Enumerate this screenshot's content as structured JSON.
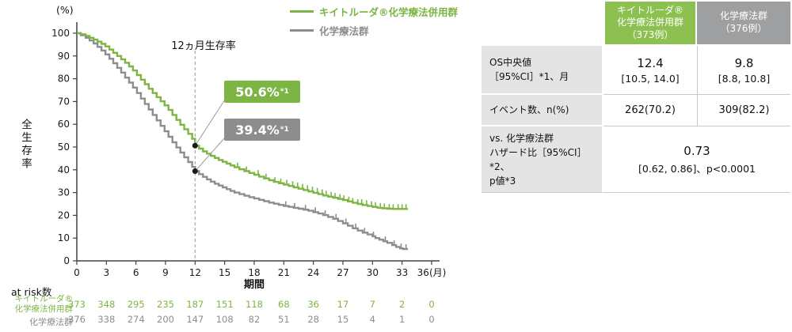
{
  "colors": {
    "green": "#7cb543",
    "gray": "#8d8d8d",
    "header-green": "#8cc152",
    "header-gray": "#9e9fa0",
    "label-bg": "#e4e4e5",
    "grid-line": "#c9c9ca",
    "axis": "#404040"
  },
  "chart": {
    "y_unit": "(%)",
    "ylabel": "全生存率",
    "xlabel": "期間",
    "annotation_12m": "12ヵ月生存率",
    "legend": [
      {
        "label": "キイトルーダ®化学療法併用群"
      },
      {
        "label": "化学療法群"
      }
    ],
    "callouts": [
      {
        "value": "50.6%",
        "sup": "*1"
      },
      {
        "value": "39.4%",
        "sup": "*1"
      }
    ]
  },
  "chart_data": {
    "type": "line",
    "subtype": "kaplan-meier-step",
    "title": "",
    "xlabel": "期間",
    "ylabel": "全生存率 (%)",
    "xlim": [
      0,
      36
    ],
    "ylim": [
      0,
      100
    ],
    "x_ticks": [
      0,
      3,
      6,
      9,
      12,
      15,
      18,
      21,
      24,
      27,
      30,
      33,
      36
    ],
    "x_tick_labels": [
      "0",
      "3",
      "6",
      "9",
      "12",
      "15",
      "18",
      "21",
      "24",
      "27",
      "30",
      "33",
      "36(月)"
    ],
    "y_ticks": [
      0,
      10,
      20,
      30,
      40,
      50,
      60,
      70,
      80,
      90,
      100
    ],
    "milestone": {
      "time_months": 12,
      "label": "12ヵ月生存率",
      "values": [
        {
          "series": "キイトルーダ®化学療法併用群",
          "survival_pct": 50.6
        },
        {
          "series": "化学療法群",
          "survival_pct": 39.4
        }
      ]
    },
    "series": [
      {
        "key": "pembro",
        "name": "キイトルーダ®化学療法併用群",
        "color": "#7cb543",
        "points": [
          [
            0,
            100
          ],
          [
            0.4,
            99.5
          ],
          [
            0.9,
            98.8
          ],
          [
            1.3,
            98
          ],
          [
            1.7,
            97.2
          ],
          [
            2.1,
            96.3
          ],
          [
            2.5,
            95.3
          ],
          [
            2.9,
            94.2
          ],
          [
            3.3,
            92.8
          ],
          [
            3.7,
            91.4
          ],
          [
            4.1,
            90
          ],
          [
            4.5,
            88.5
          ],
          [
            4.9,
            87
          ],
          [
            5.3,
            85.4
          ],
          [
            5.7,
            83.6
          ],
          [
            6.1,
            81.6
          ],
          [
            6.5,
            79.6
          ],
          [
            6.9,
            77.6
          ],
          [
            7.3,
            75.6
          ],
          [
            7.7,
            73.7
          ],
          [
            8.1,
            71.9
          ],
          [
            8.5,
            70.1
          ],
          [
            8.9,
            68.3
          ],
          [
            9.3,
            66.3
          ],
          [
            9.7,
            64.1
          ],
          [
            10.1,
            61.9
          ],
          [
            10.5,
            59.8
          ],
          [
            10.9,
            57.8
          ],
          [
            11.3,
            55.8
          ],
          [
            11.7,
            53.6
          ],
          [
            12,
            50.6
          ],
          [
            12.4,
            49.3
          ],
          [
            12.8,
            48.1
          ],
          [
            13.2,
            47.1
          ],
          [
            13.6,
            46.1
          ],
          [
            14,
            45.2
          ],
          [
            14.4,
            44.3
          ],
          [
            14.8,
            43.5
          ],
          [
            15.2,
            42.7
          ],
          [
            15.6,
            41.9
          ],
          [
            16,
            41.1
          ],
          [
            16.5,
            40.2
          ],
          [
            17,
            39.4
          ],
          [
            17.5,
            38.6
          ],
          [
            18,
            37.8
          ],
          [
            18.5,
            37
          ],
          [
            19,
            36.2
          ],
          [
            19.5,
            35.4
          ],
          [
            20,
            34.7
          ],
          [
            20.5,
            34.1
          ],
          [
            21,
            33.5
          ],
          [
            21.5,
            32.9
          ],
          [
            22,
            32.3
          ],
          [
            22.5,
            31.7
          ],
          [
            23,
            31.1
          ],
          [
            23.5,
            30.5
          ],
          [
            24,
            29.9
          ],
          [
            24.5,
            29.3
          ],
          [
            25,
            28.7
          ],
          [
            25.5,
            28.2
          ],
          [
            26,
            27.7
          ],
          [
            26.5,
            27.2
          ],
          [
            27,
            26.7
          ],
          [
            27.5,
            26.1
          ],
          [
            28,
            25.5
          ],
          [
            28.5,
            25
          ],
          [
            29,
            24.5
          ],
          [
            29.5,
            24.1
          ],
          [
            30,
            23.7
          ],
          [
            30.5,
            23.3
          ],
          [
            31,
            23.1
          ],
          [
            31.5,
            22.9
          ],
          [
            32,
            22.8
          ],
          [
            33.6,
            22.8
          ]
        ],
        "censor_times": [
          16.3,
          17.2,
          18.4,
          19.2,
          20.1,
          20.7,
          21.3,
          21.9,
          22.4,
          22.9,
          23.4,
          23.9,
          24.4,
          24.9,
          25.3,
          25.8,
          26.2,
          26.7,
          27.1,
          27.6,
          28,
          28.5,
          28.9,
          29.4,
          29.9,
          30.3,
          30.8,
          31.2,
          31.7,
          32.1,
          32.6,
          33,
          33.4
        ]
      },
      {
        "key": "chemo",
        "name": "化学療法群",
        "color": "#8d8d8d",
        "points": [
          [
            0,
            100
          ],
          [
            0.4,
            99.1
          ],
          [
            0.9,
            98
          ],
          [
            1.3,
            96.8
          ],
          [
            1.7,
            95.5
          ],
          [
            2.1,
            94
          ],
          [
            2.5,
            92.4
          ],
          [
            2.9,
            90.7
          ],
          [
            3.3,
            88.8
          ],
          [
            3.7,
            86.8
          ],
          [
            4.1,
            84.8
          ],
          [
            4.5,
            82.7
          ],
          [
            4.9,
            80.5
          ],
          [
            5.3,
            78.3
          ],
          [
            5.7,
            76.1
          ],
          [
            6.1,
            73.7
          ],
          [
            6.5,
            71.3
          ],
          [
            6.9,
            68.9
          ],
          [
            7.3,
            66.5
          ],
          [
            7.7,
            64.1
          ],
          [
            8.1,
            61.7
          ],
          [
            8.5,
            59.3
          ],
          [
            8.9,
            56.9
          ],
          [
            9.3,
            54.5
          ],
          [
            9.7,
            52.1
          ],
          [
            10.1,
            49.8
          ],
          [
            10.5,
            47.6
          ],
          [
            10.9,
            45.5
          ],
          [
            11.3,
            43.4
          ],
          [
            11.7,
            41.3
          ],
          [
            12,
            39.4
          ],
          [
            12.4,
            38.1
          ],
          [
            12.8,
            36.9
          ],
          [
            13.2,
            35.8
          ],
          [
            13.6,
            34.8
          ],
          [
            14,
            33.9
          ],
          [
            14.4,
            33.1
          ],
          [
            14.8,
            32.3
          ],
          [
            15.2,
            31.5
          ],
          [
            15.6,
            30.7
          ],
          [
            16,
            30
          ],
          [
            16.5,
            29.3
          ],
          [
            17,
            28.6
          ],
          [
            17.5,
            28
          ],
          [
            18,
            27.4
          ],
          [
            18.5,
            26.8
          ],
          [
            19,
            26.2
          ],
          [
            19.5,
            25.6
          ],
          [
            20,
            25.1
          ],
          [
            20.5,
            24.6
          ],
          [
            21,
            24.1
          ],
          [
            21.5,
            23.7
          ],
          [
            22,
            23.3
          ],
          [
            22.5,
            22.9
          ],
          [
            23,
            22.5
          ],
          [
            23.5,
            22
          ],
          [
            24,
            21.4
          ],
          [
            24.5,
            20.8
          ],
          [
            25,
            20.1
          ],
          [
            25.5,
            19.3
          ],
          [
            26,
            18.5
          ],
          [
            26.5,
            17.5
          ],
          [
            27,
            16.5
          ],
          [
            27.5,
            15.4
          ],
          [
            28,
            14.3
          ],
          [
            28.5,
            13.3
          ],
          [
            29,
            12.4
          ],
          [
            29.5,
            11.6
          ],
          [
            30,
            10.8
          ],
          [
            30.3,
            10
          ],
          [
            30.7,
            9.3
          ],
          [
            31.1,
            8.6
          ],
          [
            31.5,
            7.9
          ],
          [
            32,
            6.9
          ],
          [
            32.4,
            6.1
          ],
          [
            32.8,
            5.5
          ],
          [
            33.1,
            5.2
          ],
          [
            33.6,
            5.2
          ]
        ],
        "censor_times": [
          21.2,
          22.1,
          23.2,
          24.2,
          25.2,
          26.3,
          27.3,
          28.3,
          29.2,
          30.1,
          31.3,
          32.2,
          32.9,
          33.4
        ]
      }
    ],
    "at_risk": {
      "title": "at risk数",
      "times": [
        0,
        3,
        6,
        9,
        12,
        15,
        18,
        21,
        24,
        27,
        30,
        33,
        36
      ],
      "rows": [
        {
          "label": "キイトルーダ®\n化学療法併用群",
          "color": "#7cb543",
          "values": [
            373,
            348,
            295,
            235,
            187,
            151,
            118,
            68,
            36,
            17,
            7,
            2,
            0
          ]
        },
        {
          "label": "化学療法群",
          "color": "#8d8d8d",
          "values": [
            376,
            338,
            274,
            200,
            147,
            108,
            82,
            51,
            28,
            15,
            4,
            1,
            0
          ]
        }
      ]
    }
  },
  "table": {
    "header": {
      "col1": "キイトルーダ®\n化学療法併用群\n（373例）",
      "col2": "化学療法群\n（376例）"
    },
    "rows": {
      "os": {
        "label": "OS中央値\n［95%CI］*1、月",
        "c1_main": "12.4",
        "c1_sub": "[10.5, 14.0]",
        "c2_main": "9.8",
        "c2_sub": "[8.8, 10.8]"
      },
      "events": {
        "label": "イベント数、n(%)",
        "c1": "262(70.2)",
        "c2": "309(82.2)"
      },
      "hr": {
        "label": "vs. 化学療法群\nハザード比［95%CI］*2、\np値*3",
        "main": "0.73",
        "sub": "[0.62, 0.86]、p<0.0001"
      }
    }
  }
}
